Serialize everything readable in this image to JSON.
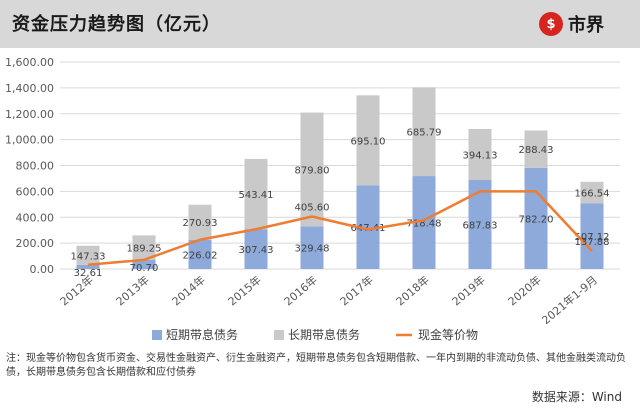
{
  "header": {
    "title": "资金压力趋势图（亿元）",
    "logo_mark": "$",
    "logo_text": "市界"
  },
  "footnote": "注：现金等价物包含货币资金、交易性金融资产、衍生金融资产，短期带息债务包含短期借款、一年内到期的非流动负债、其他金融类流动负债，长期带息债务包含长期借款和应付债券",
  "source": "数据来源：Wind",
  "chart_data": {
    "type": "bar",
    "stacked": true,
    "categories": [
      "2012年",
      "2013年",
      "2014年",
      "2015年",
      "2016年",
      "2017年",
      "2018年",
      "2019年",
      "2020年",
      "2021年1-9月"
    ],
    "series": [
      {
        "name": "短期带息债务",
        "type": "bar",
        "color": "#8eaadb",
        "values": [
          32.61,
          70.7,
          226.02,
          307.43,
          329.48,
          647.41,
          718.48,
          687.83,
          782.2,
          507.12
        ]
      },
      {
        "name": "长期带息债务",
        "type": "bar",
        "color": "#c9c9c9",
        "values": [
          147.33,
          189.25,
          270.93,
          543.41,
          879.8,
          695.1,
          685.79,
          394.13,
          288.43,
          166.54
        ]
      },
      {
        "name": "现金等价物",
        "type": "line",
        "color": "#ed7d31",
        "values": [
          32.61,
          70.7,
          226.02,
          307.43,
          405.6,
          305.25,
          377.13,
          600,
          600,
          137.88
        ]
      }
    ],
    "line_labels": [
      "",
      "",
      "",
      "",
      "405.60",
      "",
      "",
      "",
      "",
      "137.88"
    ],
    "yticks": [
      "0.00",
      "200.00",
      "400.00",
      "600.00",
      "800.00",
      "1,000.00",
      "1,200.00",
      "1,400.00",
      "1,600.00"
    ],
    "ylim": [
      0,
      1600
    ],
    "grid": true,
    "legend": "bottom"
  }
}
